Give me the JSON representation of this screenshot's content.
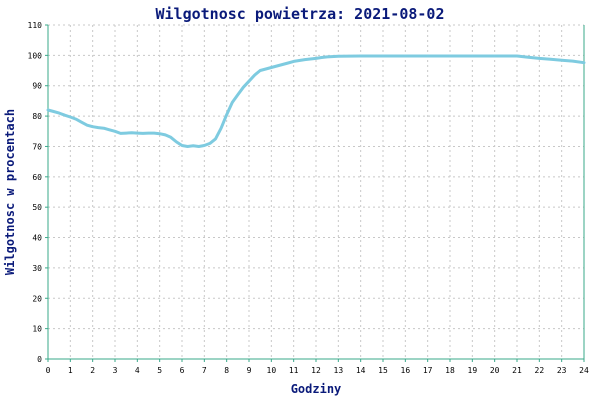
{
  "chart_data": {
    "type": "line",
    "title": "Wilgotnosc powietrza: 2021-08-02",
    "xlabel": "Godziny",
    "ylabel": "Wilgotnosc w procentach",
    "xlim": [
      0,
      24
    ],
    "ylim": [
      0,
      110
    ],
    "xticks": [
      0,
      1,
      2,
      3,
      4,
      5,
      6,
      7,
      8,
      9,
      10,
      11,
      12,
      13,
      14,
      15,
      16,
      17,
      18,
      19,
      20,
      21,
      22,
      23,
      24
    ],
    "yticks": [
      0,
      10,
      20,
      30,
      40,
      50,
      60,
      70,
      80,
      90,
      100,
      110
    ],
    "grid": true,
    "colors": {
      "line": "#7ecbe0",
      "axis": "#3aa88a",
      "grid": "#c8c8c8",
      "text": "#0a1a7a"
    },
    "series": [
      {
        "x": [
          0,
          0.25,
          0.5,
          0.75,
          1,
          1.25,
          1.5,
          1.75,
          2,
          2.25,
          2.5,
          2.75,
          3,
          3.25,
          3.5,
          3.75,
          4,
          4.25,
          4.5,
          4.75,
          5,
          5.25,
          5.5,
          5.75,
          6,
          6.25,
          6.5,
          6.75,
          7,
          7.25,
          7.5,
          7.75,
          8,
          8.25,
          8.5,
          8.75,
          9,
          9.25,
          9.5,
          9.75,
          10,
          10.25,
          10.5,
          10.75,
          11,
          11.25,
          11.5,
          11.75,
          12,
          12.25,
          12.5,
          13,
          14,
          15,
          16,
          17,
          18,
          19,
          20,
          21,
          21.5,
          22,
          22.5,
          23,
          23.5,
          24
        ],
        "y": [
          82,
          81.5,
          81,
          80.3,
          79.7,
          79,
          78,
          77,
          76.5,
          76.2,
          76,
          75.5,
          75,
          74.3,
          74.4,
          74.5,
          74.4,
          74.3,
          74.4,
          74.4,
          74.2,
          73.8,
          73,
          71.5,
          70.3,
          70,
          70.2,
          70,
          70.3,
          71,
          72.5,
          76,
          80.5,
          84.5,
          87,
          89.5,
          91.5,
          93.5,
          95,
          95.5,
          96,
          96.5,
          97,
          97.5,
          98,
          98.3,
          98.6,
          98.8,
          99,
          99.3,
          99.5,
          99.7,
          99.8,
          99.8,
          99.8,
          99.8,
          99.8,
          99.8,
          99.8,
          99.8,
          99.4,
          99,
          98.7,
          98.4,
          98.1,
          97.6
        ]
      }
    ]
  }
}
